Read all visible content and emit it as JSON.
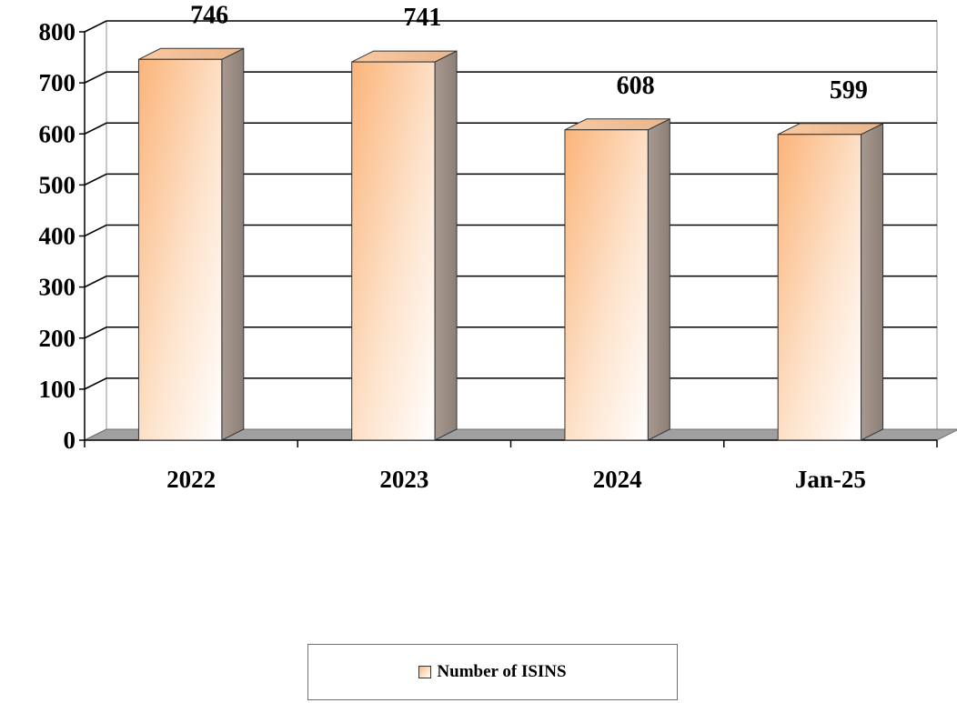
{
  "chart_data": {
    "type": "bar",
    "categories": [
      "2022",
      "2023",
      "2024",
      "Jan-25"
    ],
    "series": [
      {
        "name": "Number of ISINS",
        "values": [
          746,
          741,
          608,
          599
        ],
        "data_labels": [
          "746",
          "741",
          "608",
          "599"
        ]
      }
    ],
    "yticks": [
      "0",
      "100",
      "200",
      "300",
      "400",
      "500",
      "600",
      "700",
      "800"
    ],
    "ylim": [
      0,
      800
    ],
    "title": "",
    "xlabel": "",
    "ylabel": "",
    "grid": true,
    "legend_position": "bottom",
    "style": "3d-column",
    "colors": {
      "bar_front_top": "#ffffff",
      "bar_front_bottom": "#fdba85",
      "bar_side": "#9c8e84",
      "bar_top": "#f6c49c",
      "gridline": "#000000",
      "wall": "#ffffff",
      "floor": "#a0a0a0"
    }
  },
  "legend": {
    "label": "Number of ISINS"
  }
}
